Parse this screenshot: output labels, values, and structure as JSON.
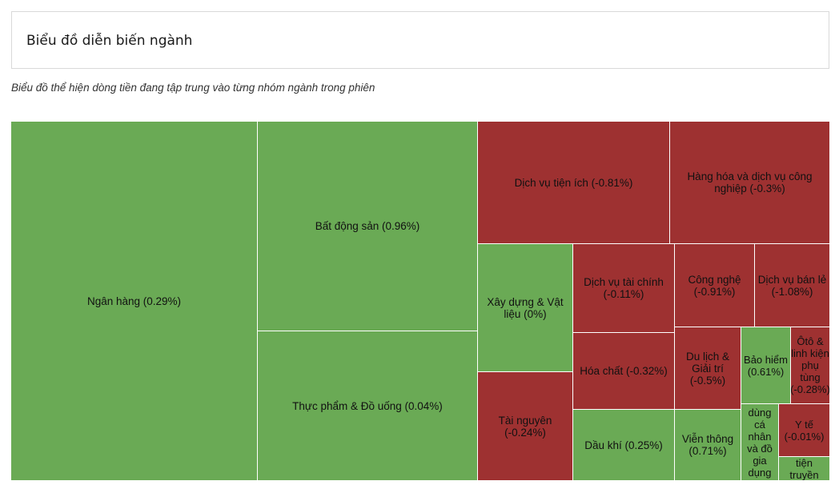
{
  "header": {
    "title": "Biểu đồ diễn biến ngành"
  },
  "subtitle": "Biểu đồ thể hiện dòng tiền đang tập trung vào từng nhóm ngành trong phiên",
  "colors": {
    "positive": "#6aaa55",
    "negative": "#9e3131",
    "border": "#ffffff"
  },
  "chart_data": {
    "type": "treemap",
    "items": [
      {
        "name": "Ngân hàng",
        "change": 0.29,
        "label": "Ngân hàng (0.29%)"
      },
      {
        "name": "Bất động sản",
        "change": 0.96,
        "label": "Bất động sản (0.96%)"
      },
      {
        "name": "Thực phẩm & Đồ uống",
        "change": 0.04,
        "label": "Thực phẩm & Đồ uống (0.04%)"
      },
      {
        "name": "Dịch vụ tiện ích",
        "change": -0.81,
        "label": "Dịch vụ tiện ích (-0.81%)"
      },
      {
        "name": "Hàng hóa và dịch vụ công nghiệp",
        "change": -0.3,
        "label": "Hàng hóa và dịch vụ công nghiệp (-0.3%)"
      },
      {
        "name": "Xây dựng & Vật liệu",
        "change": 0,
        "label": "Xây dựng & Vật liệu (0%)"
      },
      {
        "name": "Tài nguyên",
        "change": -0.24,
        "label": "Tài nguyên (-0.24%)"
      },
      {
        "name": "Dịch vụ tài chính",
        "change": -0.11,
        "label": "Dịch vụ tài chính (-0.11%)"
      },
      {
        "name": "Hóa chất",
        "change": -0.32,
        "label": "Hóa chất (-0.32%)"
      },
      {
        "name": "Dầu khí",
        "change": 0.25,
        "label": "Dầu khí (0.25%)"
      },
      {
        "name": "Công nghệ",
        "change": -0.91,
        "label": "Công nghệ (-0.91%)"
      },
      {
        "name": "Dịch vụ bán lẻ",
        "change": -1.08,
        "label": "Dịch vụ bán lẻ (-1.08%)"
      },
      {
        "name": "Du lịch & Giải trí",
        "change": -0.5,
        "label": "Du lịch & Giải trí (-0.5%)"
      },
      {
        "name": "Viễn thông",
        "change": 0.71,
        "label": "Viễn thông (0.71%)"
      },
      {
        "name": "Bảo hiểm",
        "change": 0.61,
        "label": "Bảo hiểm (0.61%)"
      },
      {
        "name": "Ôtô & linh kiện phụ tùng",
        "change": -0.28,
        "label": "Ôtô & linh kiện phụ tùng (-0.28%)"
      },
      {
        "name": "Hàng dùng cá nhân và đồ gia dụng",
        "change": null,
        "label": "dùng cá nhân và đồ gia dụng"
      },
      {
        "name": "Y tế",
        "change": -0.01,
        "label": "Y tế (-0.01%)"
      },
      {
        "name": "Truyền thông",
        "change": null,
        "label": "tiện truyền thông"
      }
    ]
  }
}
